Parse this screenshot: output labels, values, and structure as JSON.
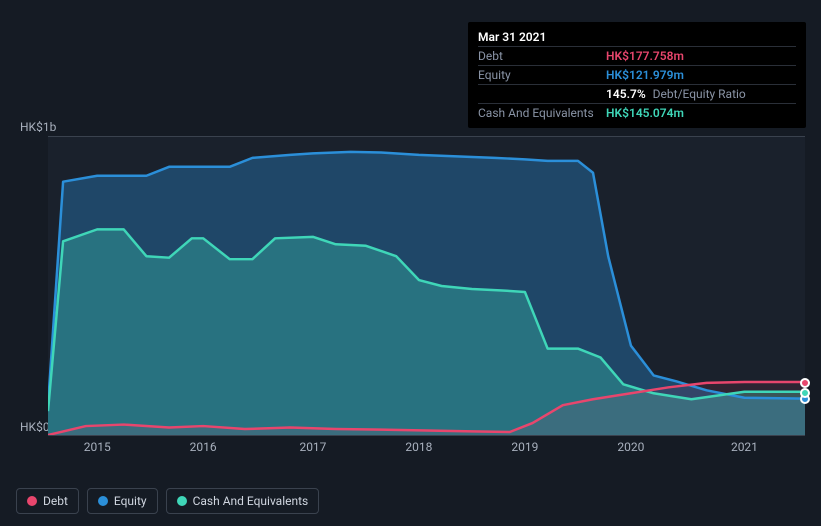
{
  "tooltip": {
    "date": "Mar 31 2021",
    "rows": [
      {
        "label": "Debt",
        "value": "HK$177.758m",
        "color": "#e8466d"
      },
      {
        "label": "Equity",
        "value": "HK$121.979m",
        "color": "#2b8fd9"
      },
      {
        "label": "",
        "ratio": "145.7%",
        "ratio_label": "Debt/Equity Ratio"
      },
      {
        "label": "Cash And Equivalents",
        "value": "HK$145.074m",
        "color": "#3fd6b8"
      }
    ]
  },
  "chart": {
    "type": "area",
    "background_color": "#151b24",
    "plot_background": "#1a212c",
    "grid_color": "#3a424e",
    "y_axis": {
      "min": 0,
      "max": 1000,
      "labels": [
        {
          "value": 1000,
          "text": "HK$1b"
        },
        {
          "value": 0,
          "text": "HK$0"
        }
      ]
    },
    "x_axis": {
      "labels": [
        "2015",
        "2016",
        "2017",
        "2018",
        "2019",
        "2020",
        "2021"
      ],
      "positions": [
        0.065,
        0.205,
        0.35,
        0.49,
        0.63,
        0.77,
        0.92
      ]
    },
    "series": {
      "equity": {
        "color": "#2b8fd9",
        "fill": "rgba(43,143,217,0.35)",
        "line_width": 2.5,
        "points": [
          [
            0.0,
            100
          ],
          [
            0.02,
            850
          ],
          [
            0.065,
            870
          ],
          [
            0.1,
            870
          ],
          [
            0.13,
            870
          ],
          [
            0.16,
            900
          ],
          [
            0.205,
            900
          ],
          [
            0.24,
            900
          ],
          [
            0.27,
            930
          ],
          [
            0.32,
            940
          ],
          [
            0.35,
            945
          ],
          [
            0.4,
            950
          ],
          [
            0.44,
            948
          ],
          [
            0.49,
            940
          ],
          [
            0.54,
            935
          ],
          [
            0.59,
            930
          ],
          [
            0.63,
            925
          ],
          [
            0.66,
            920
          ],
          [
            0.7,
            920
          ],
          [
            0.72,
            880
          ],
          [
            0.74,
            600
          ],
          [
            0.77,
            300
          ],
          [
            0.8,
            200
          ],
          [
            0.83,
            180
          ],
          [
            0.87,
            150
          ],
          [
            0.92,
            125
          ],
          [
            1.0,
            122
          ]
        ]
      },
      "cash": {
        "color": "#3fd6b8",
        "fill": "rgba(63,214,184,0.30)",
        "line_width": 2.5,
        "points": [
          [
            0.0,
            80
          ],
          [
            0.02,
            650
          ],
          [
            0.065,
            690
          ],
          [
            0.1,
            690
          ],
          [
            0.13,
            600
          ],
          [
            0.16,
            595
          ],
          [
            0.19,
            660
          ],
          [
            0.205,
            660
          ],
          [
            0.24,
            590
          ],
          [
            0.27,
            590
          ],
          [
            0.3,
            660
          ],
          [
            0.35,
            665
          ],
          [
            0.38,
            640
          ],
          [
            0.42,
            635
          ],
          [
            0.46,
            600
          ],
          [
            0.49,
            520
          ],
          [
            0.52,
            500
          ],
          [
            0.56,
            490
          ],
          [
            0.6,
            485
          ],
          [
            0.63,
            480
          ],
          [
            0.66,
            290
          ],
          [
            0.7,
            290
          ],
          [
            0.73,
            260
          ],
          [
            0.76,
            170
          ],
          [
            0.8,
            140
          ],
          [
            0.85,
            120
          ],
          [
            0.92,
            145
          ],
          [
            1.0,
            145
          ]
        ]
      },
      "debt": {
        "color": "#e8466d",
        "fill": "rgba(232,70,109,0.10)",
        "line_width": 2.5,
        "points": [
          [
            0.0,
            0
          ],
          [
            0.05,
            30
          ],
          [
            0.1,
            35
          ],
          [
            0.16,
            25
          ],
          [
            0.205,
            30
          ],
          [
            0.26,
            20
          ],
          [
            0.32,
            25
          ],
          [
            0.38,
            20
          ],
          [
            0.44,
            18
          ],
          [
            0.5,
            15
          ],
          [
            0.56,
            12
          ],
          [
            0.61,
            10
          ],
          [
            0.64,
            40
          ],
          [
            0.68,
            100
          ],
          [
            0.72,
            120
          ],
          [
            0.77,
            140
          ],
          [
            0.82,
            160
          ],
          [
            0.87,
            175
          ],
          [
            0.92,
            178
          ],
          [
            1.0,
            178
          ]
        ]
      }
    },
    "end_markers": [
      {
        "series": "debt",
        "color": "#e8466d",
        "x": 1.0,
        "y": 178
      },
      {
        "series": "equity",
        "color": "#2b8fd9",
        "x": 1.0,
        "y": 122
      },
      {
        "series": "cash",
        "color": "#3fd6b8",
        "x": 1.0,
        "y": 145
      }
    ]
  },
  "legend": {
    "items": [
      {
        "label": "Debt",
        "color": "#e8466d"
      },
      {
        "label": "Equity",
        "color": "#2b8fd9"
      },
      {
        "label": "Cash And Equivalents",
        "color": "#3fd6b8"
      }
    ]
  }
}
